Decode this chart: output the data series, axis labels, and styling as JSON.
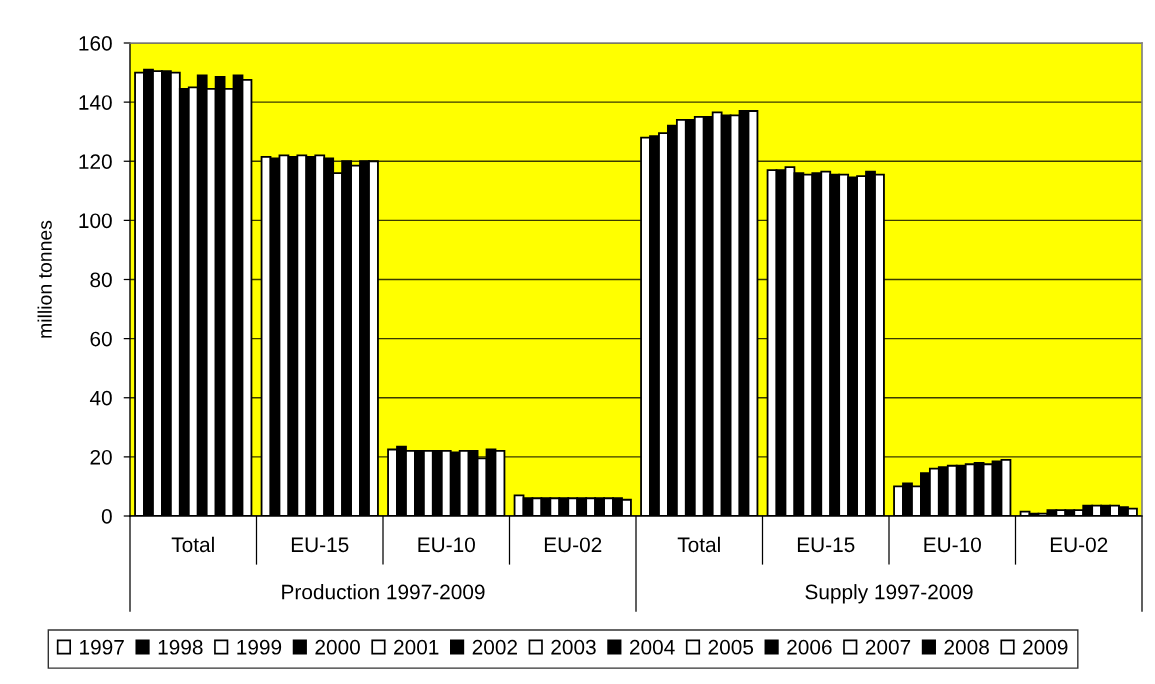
{
  "chart_data": {
    "type": "bar",
    "categories": [
      "Total",
      "EU-15",
      "EU-10",
      "EU-02",
      "Total",
      "EU-15",
      "EU-10",
      "EU-02"
    ],
    "annotations": [
      "Production 1997-2009",
      "Supply 1997-2009"
    ],
    "ylabel": "million tonnes",
    "ylim": [
      0,
      160
    ],
    "yticks": [
      0,
      20,
      40,
      60,
      80,
      100,
      120,
      140,
      160
    ],
    "grid": "y",
    "legend": "bottom",
    "series": [
      {
        "name": "1997",
        "color": "#ffffff",
        "values": [
          150,
          121.5,
          22.5,
          7,
          128,
          117,
          10,
          1.5
        ]
      },
      {
        "name": "1998",
        "color": "#000000",
        "values": [
          151,
          121,
          23.5,
          6,
          128.5,
          117,
          11,
          0.8
        ]
      },
      {
        "name": "1999",
        "color": "#ffffff",
        "values": [
          150.5,
          122,
          22,
          6,
          129.5,
          118,
          10,
          0.8
        ]
      },
      {
        "name": "2000",
        "color": "#000000",
        "values": [
          150.5,
          121.5,
          22,
          6,
          132,
          116,
          14.5,
          2
        ]
      },
      {
        "name": "2001",
        "color": "#ffffff",
        "values": [
          150,
          122,
          22,
          6,
          134,
          115.5,
          16,
          2
        ]
      },
      {
        "name": "2002",
        "color": "#000000",
        "values": [
          144.5,
          121.5,
          22,
          6,
          134,
          116,
          16.5,
          2
        ]
      },
      {
        "name": "2003",
        "color": "#ffffff",
        "values": [
          145,
          122,
          22,
          6,
          135,
          116.5,
          17,
          2
        ]
      },
      {
        "name": "2004",
        "color": "#000000",
        "values": [
          149,
          121,
          21.5,
          6,
          135,
          115.5,
          17,
          3.5
        ]
      },
      {
        "name": "2005",
        "color": "#ffffff",
        "values": [
          144.5,
          116,
          22,
          6,
          136.5,
          115.5,
          17.5,
          3.5
        ]
      },
      {
        "name": "2006",
        "color": "#000000",
        "values": [
          148.5,
          120,
          22,
          6,
          135.5,
          114.5,
          18,
          3.5
        ]
      },
      {
        "name": "2007",
        "color": "#ffffff",
        "values": [
          144.5,
          118.5,
          19.5,
          6,
          135.5,
          115,
          17.5,
          3.5
        ]
      },
      {
        "name": "2008",
        "color": "#000000",
        "values": [
          149,
          120,
          22.5,
          6,
          137,
          116.5,
          18.5,
          3
        ]
      },
      {
        "name": "2009",
        "color": "#ffffff",
        "values": [
          147.5,
          120,
          22,
          5.5,
          137,
          115.5,
          19,
          2.5
        ]
      }
    ]
  }
}
